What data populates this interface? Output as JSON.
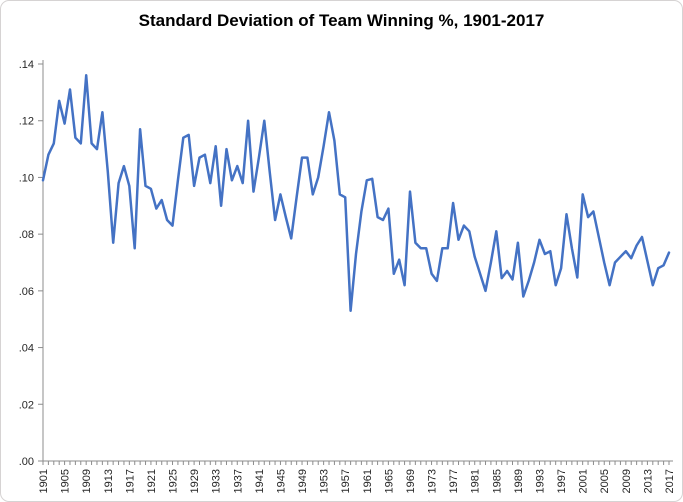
{
  "chart_data": {
    "type": "line",
    "title": "Standard Deviation of Team Winning %, 1901-2017",
    "xlabel": "",
    "ylabel": "",
    "legend": "none",
    "grid": "off",
    "x_start": 1901,
    "x_end": 2017,
    "x_tick_labels": [
      "1901",
      "1905",
      "1909",
      "1913",
      "1917",
      "1921",
      "1925",
      "1929",
      "1933",
      "1937",
      "1941",
      "1945",
      "1949",
      "1953",
      "1957",
      "1961",
      "1965",
      "1969",
      "1973",
      "1977",
      "1981",
      "1985",
      "1989",
      "1993",
      "1997",
      "2001",
      "2005",
      "2009",
      "2013",
      "2017"
    ],
    "y_axis": {
      "min": 0,
      "max": 0.14,
      "step": 0.02,
      "tick_labels_top_to_bottom": [
        ".14",
        ".12",
        ".10",
        ".08",
        ".06",
        ".04",
        ".02",
        ".00"
      ]
    },
    "series": [
      {
        "name": "Standard deviation of team winning percentage",
        "x": [
          1901,
          1902,
          1903,
          1904,
          1905,
          1906,
          1907,
          1908,
          1909,
          1910,
          1911,
          1912,
          1913,
          1914,
          1915,
          1916,
          1917,
          1918,
          1919,
          1920,
          1921,
          1922,
          1923,
          1924,
          1925,
          1926,
          1927,
          1928,
          1929,
          1930,
          1931,
          1932,
          1933,
          1934,
          1935,
          1936,
          1937,
          1938,
          1939,
          1940,
          1941,
          1942,
          1943,
          1944,
          1945,
          1946,
          1947,
          1948,
          1949,
          1950,
          1951,
          1952,
          1953,
          1954,
          1955,
          1956,
          1957,
          1958,
          1959,
          1960,
          1961,
          1962,
          1963,
          1964,
          1965,
          1966,
          1967,
          1968,
          1969,
          1970,
          1971,
          1972,
          1973,
          1974,
          1975,
          1976,
          1977,
          1978,
          1979,
          1980,
          1981,
          1982,
          1983,
          1984,
          1985,
          1986,
          1987,
          1988,
          1989,
          1990,
          1991,
          1992,
          1993,
          1994,
          1995,
          1996,
          1997,
          1998,
          1999,
          2000,
          2001,
          2002,
          2003,
          2004,
          2005,
          2006,
          2007,
          2008,
          2009,
          2010,
          2011,
          2012,
          2013,
          2014,
          2015,
          2016,
          2017
        ],
        "values": [
          0.099,
          0.108,
          0.112,
          0.127,
          0.119,
          0.131,
          0.114,
          0.112,
          0.136,
          0.112,
          0.11,
          0.123,
          0.102,
          0.077,
          0.098,
          0.104,
          0.097,
          0.075,
          0.117,
          0.097,
          0.096,
          0.089,
          0.092,
          0.085,
          0.083,
          0.099,
          0.114,
          0.115,
          0.097,
          0.107,
          0.108,
          0.098,
          0.111,
          0.09,
          0.11,
          0.099,
          0.104,
          0.098,
          0.12,
          0.095,
          0.107,
          0.12,
          0.102,
          0.085,
          0.094,
          0.086,
          0.0785,
          0.093,
          0.107,
          0.107,
          0.094,
          0.1,
          0.111,
          0.123,
          0.113,
          0.094,
          0.093,
          0.053,
          0.073,
          0.088,
          0.099,
          0.0995,
          0.086,
          0.085,
          0.089,
          0.066,
          0.071,
          0.062,
          0.095,
          0.077,
          0.075,
          0.075,
          0.066,
          0.0635,
          0.075,
          0.075,
          0.091,
          0.078,
          0.083,
          0.081,
          0.072,
          0.066,
          0.06,
          0.07,
          0.081,
          0.0645,
          0.067,
          0.064,
          0.077,
          0.058,
          0.0635,
          0.07,
          0.078,
          0.073,
          0.074,
          0.062,
          0.068,
          0.087,
          0.075,
          0.0647,
          0.094,
          0.086,
          0.088,
          0.079,
          0.07,
          0.062,
          0.07,
          0.072,
          0.074,
          0.0715,
          0.076,
          0.079,
          0.0705,
          0.062,
          0.068,
          0.069,
          0.0735
        ]
      }
    ],
    "colors": {
      "line": "#4472C4",
      "axis": "#8c8c8c",
      "tick_label": "#262626",
      "background": "#ffffff",
      "chart_border": "#d6d3d3"
    }
  }
}
